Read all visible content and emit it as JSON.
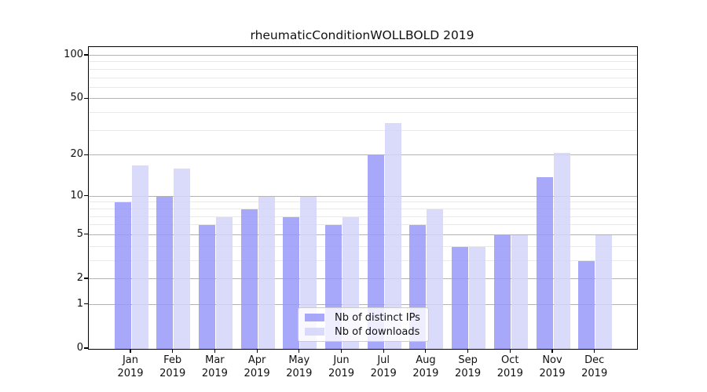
{
  "title": "rheumaticConditionWOLLBOLD 2019",
  "chart_data": {
    "type": "bar",
    "title": "rheumaticConditionWOLLBOLD 2019",
    "categories": [
      "Jan",
      "Feb",
      "Mar",
      "Apr",
      "May",
      "Jun",
      "Jul",
      "Aug",
      "Sep",
      "Oct",
      "Nov",
      "Dec"
    ],
    "year_label": "2019",
    "series": [
      {
        "name": "Nb of distinct IPs",
        "color": "#9999f9",
        "values": [
          9,
          10,
          6,
          8,
          7,
          6,
          20,
          6,
          4,
          5,
          14,
          3
        ]
      },
      {
        "name": "Nb of downloads",
        "color": "#d3d3fa",
        "values": [
          17,
          16,
          7,
          10,
          10,
          7,
          34,
          8,
          4,
          5,
          21,
          5
        ]
      }
    ],
    "y_scale": "log1p",
    "y_ticks": [
      100,
      50,
      20,
      10,
      5,
      2,
      1,
      0
    ],
    "y_minor_gridlines": [
      3,
      4,
      6,
      7,
      8,
      9,
      30,
      40,
      60,
      70,
      80,
      90
    ],
    "ylim": [
      0,
      115
    ],
    "grid": true,
    "legend_position": "lower center"
  },
  "colors": {
    "major_gridline": "#b3b3b3",
    "minor_gridline": "#e9e9e9",
    "spine": "#000000",
    "background": "#ffffff"
  }
}
